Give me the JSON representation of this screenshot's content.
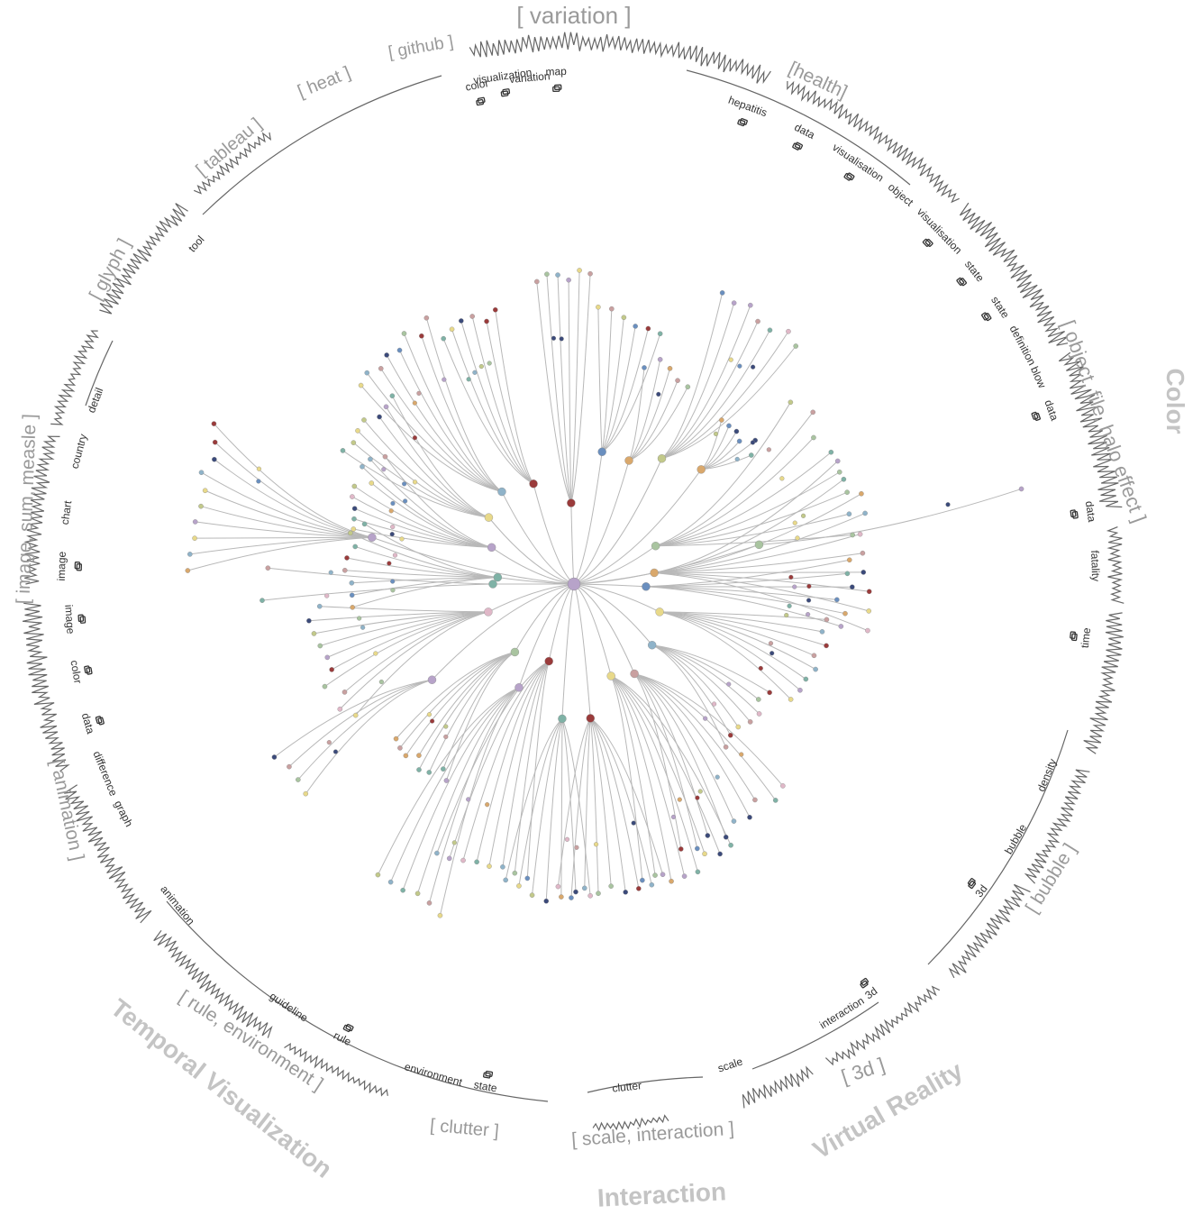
{
  "categories": [
    {
      "id": "color",
      "label": "Color"
    },
    {
      "id": "virtual-reality",
      "label": "Virtual Reality"
    },
    {
      "id": "interaction",
      "label": "Interaction"
    },
    {
      "id": "temporal-visualization",
      "label": "Temporal Visualization"
    }
  ],
  "topics": [
    {
      "id": "variation",
      "label": "[ variation ]"
    },
    {
      "id": "health",
      "label": "[health]"
    },
    {
      "id": "object-file-halo",
      "label": "[ object, file, halo effect ]"
    },
    {
      "id": "bubble",
      "label": "[ bubble ]"
    },
    {
      "id": "3d",
      "label": "[ 3d ]"
    },
    {
      "id": "scale-interaction",
      "label": "[ scale, interaction ]"
    },
    {
      "id": "clutter",
      "label": "[ clutter ]"
    },
    {
      "id": "rule-environment",
      "label": "[ rule, environment ]"
    },
    {
      "id": "animation",
      "label": "[ animation ]"
    },
    {
      "id": "image-sum-measle",
      "label": "[ image, sum, measle ]"
    },
    {
      "id": "glyph",
      "label": "[ glyph ]"
    },
    {
      "id": "tableau",
      "label": "[ tableau ]"
    },
    {
      "id": "heat",
      "label": "[ heat ]"
    },
    {
      "id": "github",
      "label": "[ github ]"
    }
  ],
  "keywords": [
    {
      "id": "kw-color",
      "label": "color",
      "doc": true
    },
    {
      "id": "kw-visualization",
      "label": "visualization",
      "doc": true
    },
    {
      "id": "kw-variation",
      "label": "variation",
      "doc": false
    },
    {
      "id": "kw-map",
      "label": "map",
      "doc": true
    },
    {
      "id": "kw-hepatitis",
      "label": "hepatitis",
      "doc": true
    },
    {
      "id": "kw-data-health",
      "label": "data",
      "doc": true
    },
    {
      "id": "kw-visualisation",
      "label": "visualisation",
      "doc": true
    },
    {
      "id": "kw-object",
      "label": "object",
      "doc": false
    },
    {
      "id": "kw-visualisation-2",
      "label": "visualisation",
      "doc": true
    },
    {
      "id": "kw-state-1",
      "label": "state",
      "doc": true
    },
    {
      "id": "kw-state-2",
      "label": "state",
      "doc": true
    },
    {
      "id": "kw-definition",
      "label": "definition",
      "doc": false
    },
    {
      "id": "kw-blow",
      "label": "blow",
      "doc": false
    },
    {
      "id": "kw-data-r1",
      "label": "data",
      "doc": true
    },
    {
      "id": "kw-data-r2",
      "label": "data",
      "doc": true
    },
    {
      "id": "kw-fatality",
      "label": "fatality",
      "doc": false
    },
    {
      "id": "kw-time",
      "label": "time",
      "doc": true
    },
    {
      "id": "kw-density",
      "label": "density",
      "doc": false
    },
    {
      "id": "kw-bubble",
      "label": "bubble",
      "doc": false
    },
    {
      "id": "kw-3d-1",
      "label": "3d",
      "doc": true
    },
    {
      "id": "kw-3d-2",
      "label": "3d",
      "doc": true
    },
    {
      "id": "kw-interaction",
      "label": "interaction",
      "doc": false
    },
    {
      "id": "kw-scale",
      "label": "scale",
      "doc": false
    },
    {
      "id": "kw-clutter",
      "label": "clutter",
      "doc": false
    },
    {
      "id": "kw-state-3",
      "label": "state",
      "doc": true
    },
    {
      "id": "kw-environment",
      "label": "environment",
      "doc": false
    },
    {
      "id": "kw-rule",
      "label": "rule",
      "doc": true
    },
    {
      "id": "kw-guideline",
      "label": "guideline",
      "doc": false
    },
    {
      "id": "kw-animation",
      "label": "animation",
      "doc": false
    },
    {
      "id": "kw-graph",
      "label": "graph",
      "doc": false
    },
    {
      "id": "kw-difference",
      "label": "difference",
      "doc": false
    },
    {
      "id": "kw-data-l",
      "label": "data",
      "doc": true
    },
    {
      "id": "kw-color-l",
      "label": "color",
      "doc": true
    },
    {
      "id": "kw-image-1",
      "label": "image",
      "doc": true
    },
    {
      "id": "kw-image-2",
      "label": "image",
      "doc": true
    },
    {
      "id": "kw-chart",
      "label": "chart",
      "doc": false
    },
    {
      "id": "kw-country",
      "label": "country",
      "doc": false
    },
    {
      "id": "kw-detail",
      "label": "detail",
      "doc": false
    },
    {
      "id": "kw-tool",
      "label": "tool",
      "doc": false
    }
  ],
  "node_palette": [
    "#a9c4a0",
    "#e8d98a",
    "#c9a0a0",
    "#8fb3c9",
    "#d9a86c",
    "#b7a3c9",
    "#9a3b3b",
    "#3b4a7a",
    "#c2c98a",
    "#7fb2a6",
    "#e0b8c8",
    "#6a8fbf"
  ]
}
